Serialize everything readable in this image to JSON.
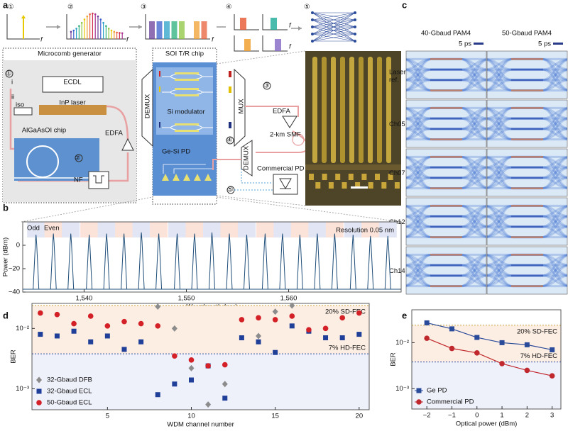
{
  "panel_labels": [
    "a",
    "b",
    "c",
    "d",
    "e"
  ],
  "schematic": {
    "steps": [
      "①",
      "②",
      "③",
      "④",
      "⑤"
    ],
    "axis_f": "f",
    "microcomb": {
      "title": "Microcomb generator",
      "ecdl": "ECDL",
      "inp": "InP laser",
      "iso": "iso",
      "i": "i",
      "ii": "ii",
      "chip": "AlGaAsOI chip",
      "edfa": "EDFA",
      "nf": "NF"
    },
    "soi": {
      "title": "SOI T/R chip",
      "demux": "DEMUX",
      "mux": "MUX",
      "modulator": "Si modulator",
      "pd": "Ge-Si PD"
    },
    "link": {
      "edfa": "EDFA",
      "smf": "2-km SMF",
      "demux": "DEMUX",
      "pd": "Commercial PD"
    }
  },
  "eye": {
    "columns": [
      "40-Gbaud PAM4",
      "50-Gbaud PAM4"
    ],
    "scale": "5 ps",
    "rows": [
      "Laser ref.",
      "Ch05",
      "Ch07",
      "Ch12",
      "Ch14"
    ]
  },
  "chart_data": [
    {
      "type": "spectrum",
      "xlabel": "Wavelength (nm)",
      "ylabel": "Power (dBm)",
      "annotation": "Resolution 0.05 nm",
      "bands": [
        "Odd",
        "Even"
      ],
      "color": "#1f4e79",
      "x": [
        1535.3,
        1537.0,
        1538.7,
        1540.5,
        1542.2,
        1543.9,
        1545.6,
        1547.3,
        1549.1,
        1550.8,
        1552.5,
        1554.2,
        1555.9,
        1557.7,
        1559.4,
        1561.1,
        1562.8,
        1564.5,
        1566.3,
        1568.0,
        1569.7
      ],
      "values": [
        9,
        10,
        10,
        9,
        10,
        10,
        11,
        10,
        10,
        10,
        11,
        10,
        9,
        10,
        10,
        9,
        10,
        10,
        9,
        8,
        8
      ],
      "xlim": [
        1534,
        1571
      ],
      "ylim": [
        -40,
        20
      ],
      "xticks": [
        {
          "value": 1540,
          "label": "1,540"
        },
        {
          "value": 1550,
          "label": "1,550"
        },
        {
          "value": 1560,
          "label": "1,560"
        }
      ],
      "yticks": [
        0,
        {
          "value": -20,
          "label": "−20"
        },
        {
          "value": -40,
          "label": "−40"
        }
      ]
    },
    {
      "type": "scatter",
      "xlabel": "WDM channel number",
      "ylabel": "BER",
      "log_y": true,
      "legend": "lower left",
      "xlim": [
        0.5,
        20.6
      ],
      "ylim": [
        0.00045,
        0.026
      ],
      "xticks": [
        5,
        10,
        15,
        20
      ],
      "yticks": [
        {
          "value": 0.01,
          "label": "10⁻²"
        },
        {
          "value": 0.001,
          "label": "10⁻³"
        }
      ],
      "thresholds": [
        {
          "label": "20% SD-FEC",
          "value": 0.024,
          "color": "#c9a43a"
        },
        {
          "label": "7% HD-FEC",
          "value": 0.0038,
          "color": "#2b4aa0"
        }
      ],
      "series": [
        {
          "name": "32-Gbaud DFB",
          "color": "#8c8c8c",
          "marker": "diamond",
          "x": [
            8,
            9,
            10,
            11,
            12,
            14,
            15,
            16
          ],
          "values": [
            0.023,
            0.01,
            0.0022,
            0.00055,
            0.0012,
            0.0075,
            0.019,
            0.024
          ]
        },
        {
          "name": "32-Gbaud ECL",
          "color": "#1f3f99",
          "marker": "square",
          "x": [
            1,
            2,
            3,
            4,
            5,
            6,
            7,
            8,
            9,
            10,
            11,
            12,
            13,
            14,
            15,
            16,
            17,
            18,
            19,
            20
          ],
          "values": [
            0.008,
            0.0075,
            0.009,
            0.006,
            0.0075,
            0.0045,
            0.006,
            0.0008,
            0.0012,
            0.0014,
            0.0024,
            0.0007,
            0.007,
            0.006,
            0.004,
            0.011,
            0.009,
            0.007,
            0.007,
            0.008
          ]
        },
        {
          "name": "50-Gbaud ECL",
          "color": "#d42027",
          "marker": "circle",
          "x": [
            1,
            2,
            3,
            4,
            5,
            6,
            7,
            8,
            9,
            10,
            11,
            12,
            13,
            14,
            15,
            16,
            17,
            18,
            19,
            20
          ],
          "values": [
            0.018,
            0.017,
            0.012,
            0.016,
            0.011,
            0.013,
            0.012,
            0.011,
            0.0035,
            0.003,
            0.0024,
            0.0025,
            0.014,
            0.015,
            0.014,
            0.016,
            0.0095,
            0.01,
            0.015,
            0.018
          ]
        }
      ]
    },
    {
      "type": "line",
      "xlabel": "Optical power (dBm)",
      "ylabel": "BER",
      "log_y": true,
      "legend": "lower left",
      "xlim": [
        -2.6,
        3.35
      ],
      "ylim": [
        0.00036,
        0.052
      ],
      "xticks": [
        {
          "value": -2,
          "label": "−2"
        },
        {
          "value": -1,
          "label": "−1"
        },
        0,
        1,
        2,
        3
      ],
      "yticks": [
        {
          "value": 0.01,
          "label": "10⁻²"
        },
        {
          "value": 0.001,
          "label": "10⁻³"
        }
      ],
      "thresholds": [
        {
          "label": "20% SD-FEC",
          "value": 0.024,
          "color": "#c9a43a"
        },
        {
          "label": "7% HD-FEC",
          "value": 0.0038,
          "color": "#2b4aa0"
        }
      ],
      "x": [
        -2,
        -1,
        0,
        1,
        2,
        3
      ],
      "series": [
        {
          "name": "Ge PD",
          "color": "#2a4a9a",
          "marker": "square",
          "values": [
            0.027,
            0.02,
            0.013,
            0.01,
            0.009,
            0.007
          ]
        },
        {
          "name": "Commercial PD",
          "color": "#c0282d",
          "marker": "circle",
          "values": [
            0.0125,
            0.0075,
            0.006,
            0.0035,
            0.0025,
            0.0019
          ]
        }
      ]
    }
  ]
}
